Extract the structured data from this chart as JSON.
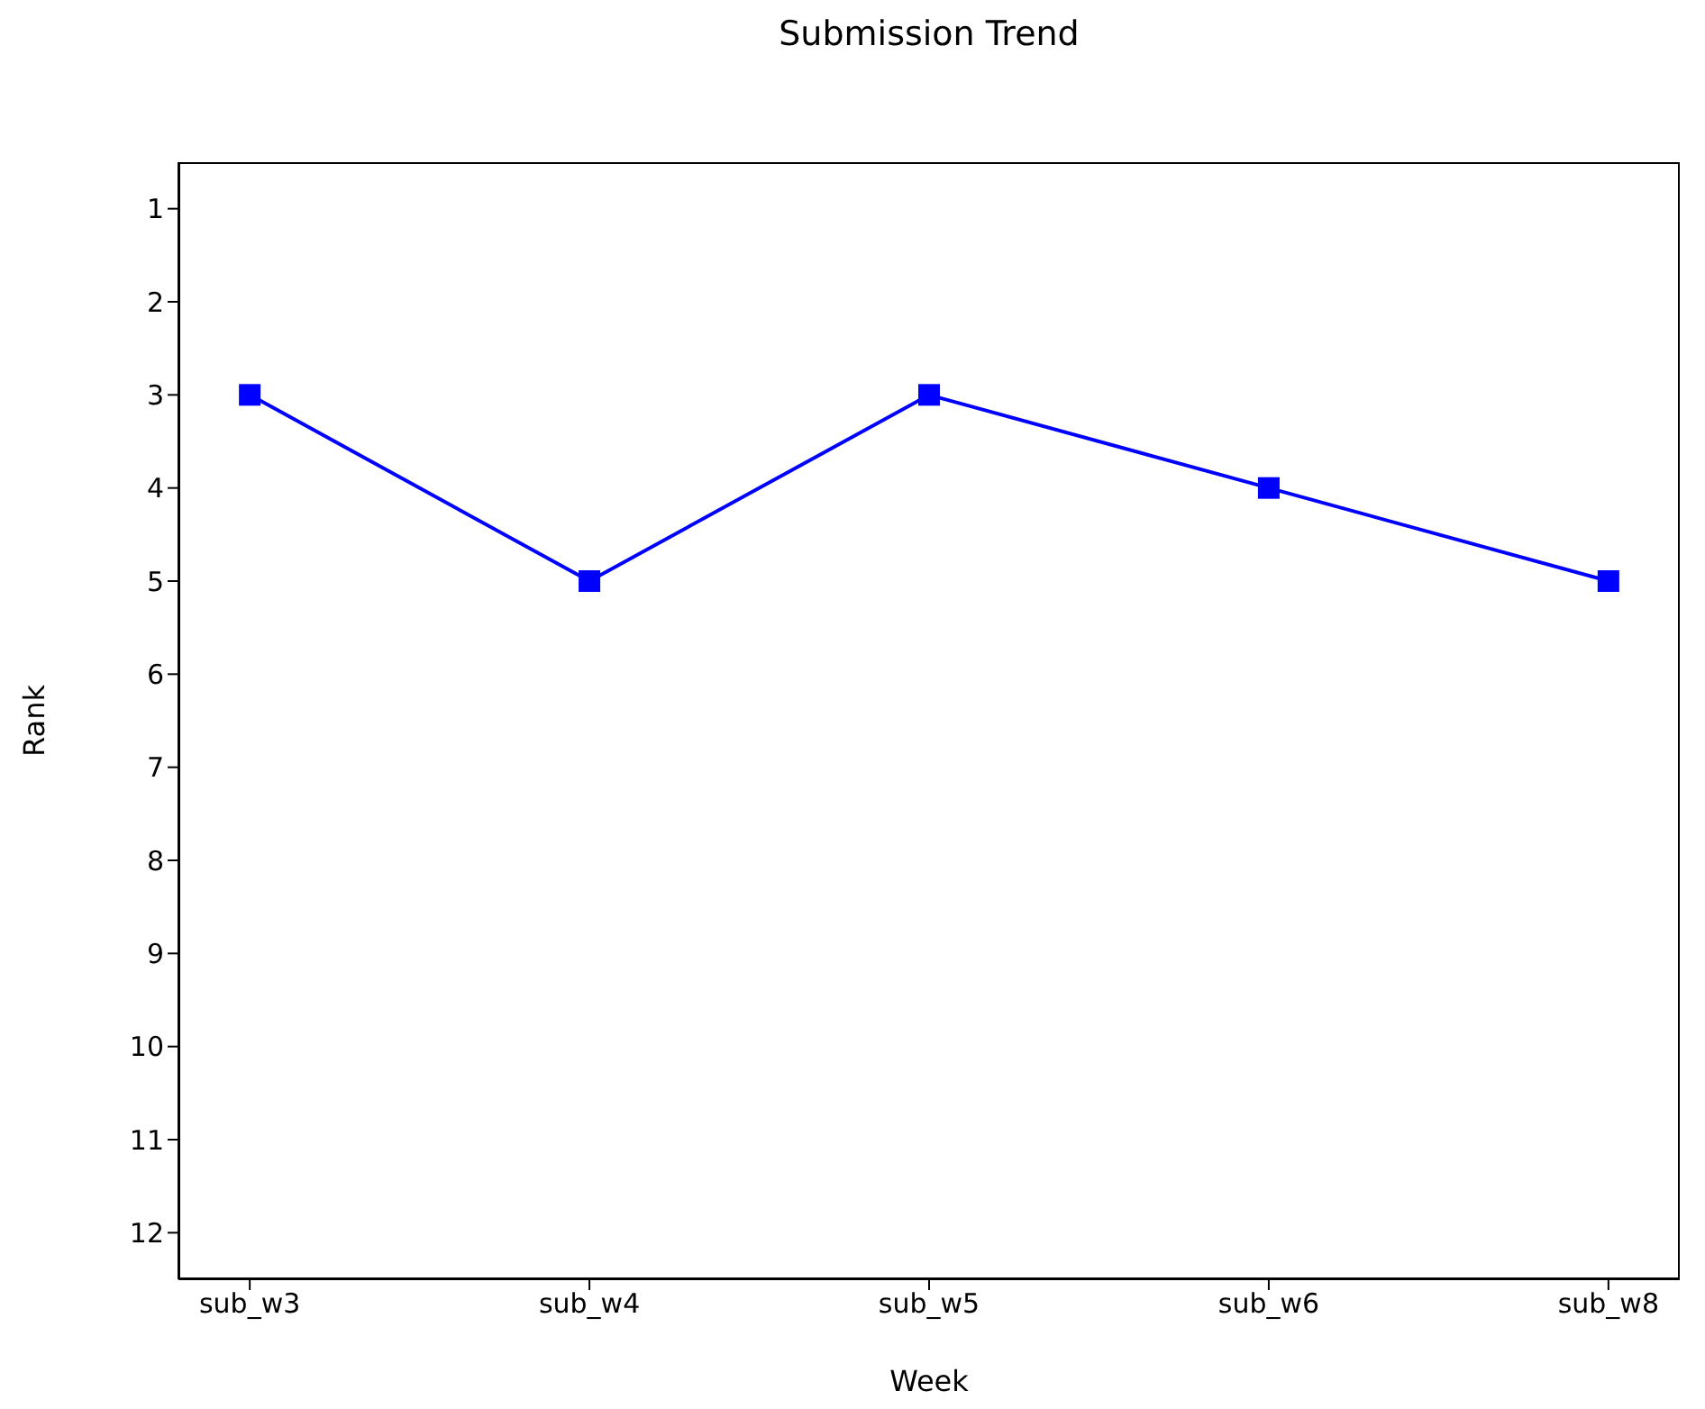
{
  "chart_data": {
    "type": "line",
    "title": "Submission Trend",
    "xlabel": "Week",
    "ylabel": "Rank",
    "categories": [
      "sub_w3",
      "sub_w4",
      "sub_w5",
      "sub_w6",
      "sub_w8"
    ],
    "series": [
      {
        "color": "#0000ff",
        "values": [
          3,
          5,
          3,
          4,
          5
        ]
      }
    ],
    "ylim": [
      12.5,
      0.5
    ],
    "yticks": [
      1,
      2,
      3,
      4,
      5,
      6,
      7,
      8,
      9,
      10,
      11,
      12
    ],
    "marker": "square",
    "line_style": "solid",
    "grid": false,
    "legend": false
  }
}
